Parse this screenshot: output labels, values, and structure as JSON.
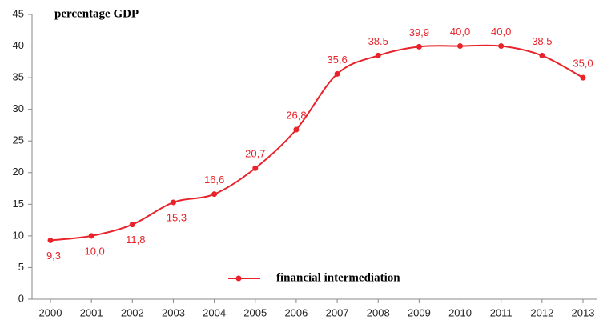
{
  "chart_data": {
    "type": "line",
    "title": "percentage GDP",
    "categories": [
      "2000",
      "2001",
      "2002",
      "2003",
      "2004",
      "2005",
      "2006",
      "2007",
      "2008",
      "2009",
      "2010",
      "2011",
      "2012",
      "2013"
    ],
    "series": [
      {
        "name": "financial intermediation",
        "color": "#e8232a",
        "values": [
          9.3,
          10.0,
          11.8,
          15.3,
          16.6,
          20.7,
          26.8,
          35.6,
          38.5,
          39.9,
          40.0,
          40.0,
          38.5,
          35.0
        ],
        "value_labels": [
          "9,3",
          "10,0",
          "11,8",
          "15,3",
          "16,6",
          "20,7",
          "26,8",
          "35,6",
          "38.5",
          "39,9",
          "40,0",
          "40,0",
          "38.5",
          "35,0"
        ]
      }
    ],
    "ylim": [
      0,
      45
    ],
    "yticks": [
      0,
      5,
      10,
      15,
      20,
      25,
      30,
      35,
      40,
      45
    ],
    "grid": false
  }
}
